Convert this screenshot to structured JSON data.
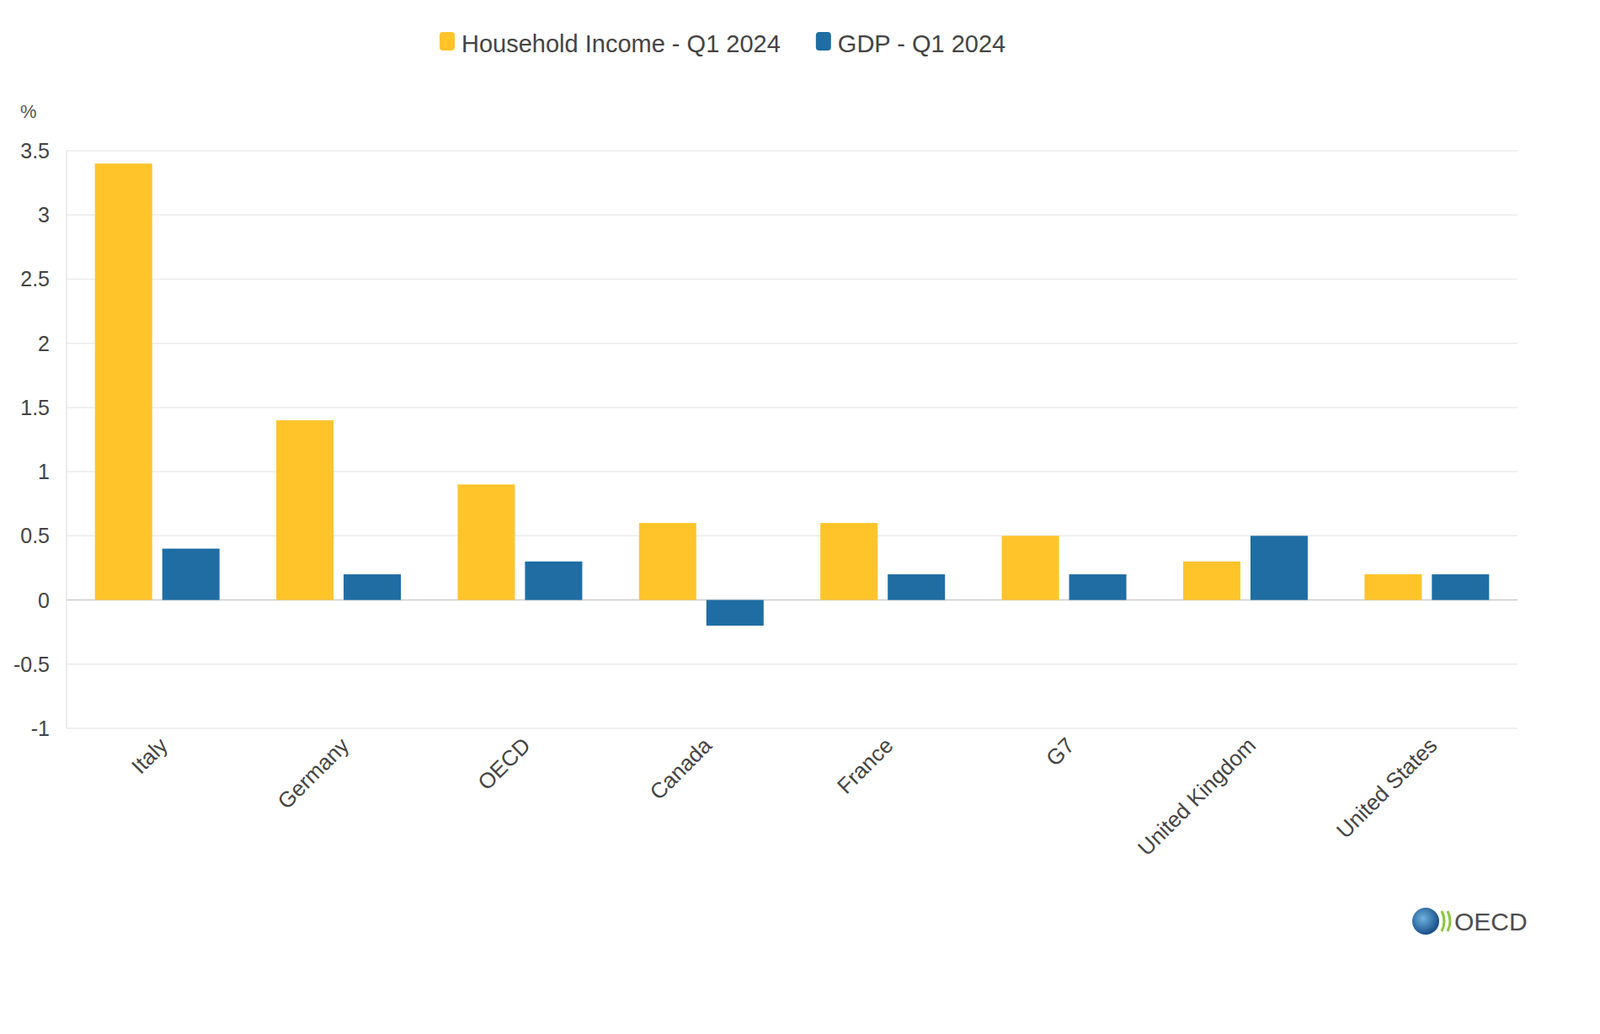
{
  "chart_data": {
    "type": "bar",
    "y_label": "%",
    "categories": [
      "Italy",
      "Germany",
      "OECD",
      "Canada",
      "France",
      "G7",
      "United Kingdom",
      "United States"
    ],
    "series": [
      {
        "name": "Household Income - Q1 2024",
        "color": "#FFC42A",
        "values": [
          3.4,
          1.4,
          0.9,
          0.6,
          0.6,
          0.5,
          0.3,
          0.2
        ]
      },
      {
        "name": "GDP - Q1 2024",
        "color": "#1F6DA3",
        "values": [
          0.4,
          0.2,
          0.3,
          -0.2,
          0.2,
          0.2,
          0.5,
          0.2
        ]
      }
    ],
    "ylim": [
      -1,
      3.5
    ],
    "yticks": [
      -1,
      -0.5,
      0,
      0.5,
      1,
      1.5,
      2,
      2.5,
      3,
      3.5
    ],
    "grid": true,
    "legend": "top",
    "annotations": [
      "OECD"
    ]
  }
}
